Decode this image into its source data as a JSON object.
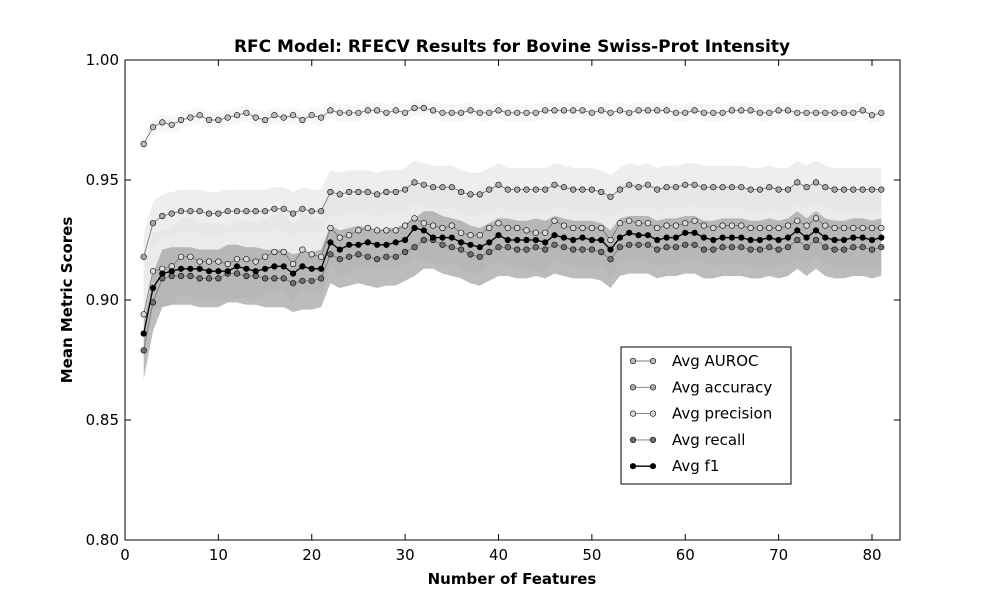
{
  "chart_data": {
    "type": "line",
    "title": "RFC Model: RFECV Results for Bovine Swiss-Prot Intensity",
    "xlabel": "Number of Features",
    "ylabel": "Mean Metric Scores",
    "xlim": [
      0,
      83
    ],
    "ylim": [
      0.8,
      1.0
    ],
    "x_ticks": [
      0,
      10,
      20,
      30,
      40,
      50,
      60,
      70,
      80
    ],
    "y_ticks": [
      0.8,
      0.85,
      0.9,
      0.95,
      1.0
    ],
    "x_tick_labels": [
      "0",
      "10",
      "20",
      "30",
      "40",
      "50",
      "60",
      "70",
      "80"
    ],
    "y_tick_labels": [
      "0.80",
      "0.85",
      "0.90",
      "0.95",
      "1.00"
    ],
    "grid": false,
    "legend_position": "lower-right",
    "x": [
      2,
      3,
      4,
      5,
      6,
      7,
      8,
      9,
      10,
      11,
      12,
      13,
      14,
      15,
      16,
      17,
      18,
      19,
      20,
      21,
      22,
      23,
      24,
      25,
      26,
      27,
      28,
      29,
      30,
      31,
      32,
      33,
      34,
      35,
      36,
      37,
      38,
      39,
      40,
      41,
      42,
      43,
      44,
      45,
      46,
      47,
      48,
      49,
      50,
      51,
      52,
      53,
      54,
      55,
      56,
      57,
      58,
      59,
      60,
      61,
      62,
      63,
      64,
      65,
      66,
      67,
      68,
      69,
      70,
      71,
      72,
      73,
      74,
      75,
      76,
      77,
      78,
      79,
      80,
      81
    ],
    "series": [
      {
        "name": "Avg AUROC",
        "color": "#bdbdbd",
        "band_color": "#f4f4f4",
        "band_width": 0.0035,
        "values": [
          0.965,
          0.972,
          0.974,
          0.973,
          0.975,
          0.976,
          0.977,
          0.975,
          0.975,
          0.976,
          0.977,
          0.978,
          0.976,
          0.975,
          0.977,
          0.976,
          0.977,
          0.975,
          0.977,
          0.976,
          0.979,
          0.978,
          0.978,
          0.978,
          0.979,
          0.979,
          0.978,
          0.979,
          0.978,
          0.98,
          0.98,
          0.979,
          0.978,
          0.978,
          0.978,
          0.979,
          0.978,
          0.978,
          0.979,
          0.978,
          0.978,
          0.978,
          0.978,
          0.979,
          0.979,
          0.979,
          0.979,
          0.979,
          0.978,
          0.979,
          0.978,
          0.979,
          0.978,
          0.979,
          0.979,
          0.979,
          0.979,
          0.978,
          0.978,
          0.979,
          0.978,
          0.978,
          0.978,
          0.979,
          0.979,
          0.979,
          0.978,
          0.978,
          0.979,
          0.979,
          0.978,
          0.978,
          0.978,
          0.978,
          0.978,
          0.978,
          0.978,
          0.979,
          0.977,
          0.978
        ]
      },
      {
        "name": "Avg accuracy",
        "color": "#a8a8a8",
        "band_color": "#e8e8e8",
        "band_width": 0.009,
        "values": [
          0.918,
          0.932,
          0.935,
          0.936,
          0.937,
          0.937,
          0.937,
          0.936,
          0.936,
          0.937,
          0.937,
          0.937,
          0.937,
          0.937,
          0.938,
          0.938,
          0.936,
          0.938,
          0.937,
          0.937,
          0.945,
          0.944,
          0.945,
          0.945,
          0.945,
          0.944,
          0.945,
          0.945,
          0.946,
          0.949,
          0.948,
          0.947,
          0.947,
          0.947,
          0.945,
          0.944,
          0.944,
          0.946,
          0.948,
          0.946,
          0.946,
          0.946,
          0.946,
          0.946,
          0.948,
          0.947,
          0.946,
          0.946,
          0.946,
          0.945,
          0.943,
          0.946,
          0.948,
          0.947,
          0.948,
          0.946,
          0.947,
          0.947,
          0.948,
          0.948,
          0.947,
          0.947,
          0.947,
          0.947,
          0.947,
          0.946,
          0.946,
          0.947,
          0.946,
          0.946,
          0.949,
          0.947,
          0.949,
          0.947,
          0.946,
          0.946,
          0.946,
          0.946,
          0.946,
          0.946
        ]
      },
      {
        "name": "Avg precision",
        "color": "#d8d8d8",
        "band_color": "#e4e4e4",
        "band_width": 0.016,
        "values": [
          0.894,
          0.912,
          0.913,
          0.914,
          0.918,
          0.918,
          0.916,
          0.916,
          0.916,
          0.915,
          0.917,
          0.917,
          0.916,
          0.918,
          0.92,
          0.92,
          0.915,
          0.921,
          0.919,
          0.918,
          0.93,
          0.926,
          0.927,
          0.929,
          0.93,
          0.929,
          0.929,
          0.929,
          0.931,
          0.934,
          0.932,
          0.931,
          0.93,
          0.931,
          0.928,
          0.927,
          0.927,
          0.93,
          0.932,
          0.93,
          0.93,
          0.929,
          0.928,
          0.928,
          0.933,
          0.931,
          0.93,
          0.93,
          0.93,
          0.93,
          0.925,
          0.932,
          0.933,
          0.932,
          0.932,
          0.93,
          0.931,
          0.931,
          0.932,
          0.933,
          0.931,
          0.93,
          0.931,
          0.931,
          0.931,
          0.93,
          0.93,
          0.93,
          0.93,
          0.931,
          0.933,
          0.931,
          0.934,
          0.931,
          0.93,
          0.93,
          0.93,
          0.93,
          0.93,
          0.93
        ]
      },
      {
        "name": "Avg recall",
        "color": "#6e6e6e",
        "band_color": "#a6a6a6",
        "band_width": 0.012,
        "values": [
          0.879,
          0.899,
          0.909,
          0.91,
          0.91,
          0.91,
          0.909,
          0.909,
          0.909,
          0.911,
          0.911,
          0.91,
          0.91,
          0.909,
          0.909,
          0.909,
          0.907,
          0.908,
          0.908,
          0.909,
          0.919,
          0.917,
          0.918,
          0.919,
          0.918,
          0.917,
          0.918,
          0.918,
          0.92,
          0.922,
          0.925,
          0.925,
          0.923,
          0.922,
          0.921,
          0.919,
          0.918,
          0.92,
          0.922,
          0.922,
          0.921,
          0.921,
          0.922,
          0.921,
          0.923,
          0.922,
          0.921,
          0.921,
          0.921,
          0.92,
          0.917,
          0.922,
          0.923,
          0.923,
          0.923,
          0.921,
          0.922,
          0.922,
          0.923,
          0.923,
          0.921,
          0.921,
          0.922,
          0.922,
          0.922,
          0.921,
          0.921,
          0.922,
          0.921,
          0.922,
          0.925,
          0.922,
          0.925,
          0.922,
          0.921,
          0.921,
          0.922,
          0.922,
          0.921,
          0.922
        ]
      },
      {
        "name": "Avg f1",
        "color": "#000000",
        "band_color": null,
        "band_width": 0,
        "values": [
          0.886,
          0.905,
          0.911,
          0.912,
          0.913,
          0.913,
          0.913,
          0.912,
          0.912,
          0.912,
          0.914,
          0.913,
          0.912,
          0.913,
          0.914,
          0.914,
          0.911,
          0.914,
          0.913,
          0.913,
          0.924,
          0.921,
          0.923,
          0.923,
          0.924,
          0.923,
          0.923,
          0.924,
          0.925,
          0.93,
          0.929,
          0.926,
          0.926,
          0.926,
          0.924,
          0.923,
          0.922,
          0.924,
          0.927,
          0.925,
          0.925,
          0.925,
          0.925,
          0.924,
          0.927,
          0.926,
          0.925,
          0.926,
          0.925,
          0.925,
          0.921,
          0.926,
          0.928,
          0.927,
          0.927,
          0.925,
          0.926,
          0.926,
          0.928,
          0.928,
          0.926,
          0.925,
          0.926,
          0.926,
          0.926,
          0.925,
          0.925,
          0.926,
          0.925,
          0.926,
          0.929,
          0.926,
          0.929,
          0.926,
          0.925,
          0.925,
          0.926,
          0.926,
          0.925,
          0.926
        ]
      }
    ]
  }
}
